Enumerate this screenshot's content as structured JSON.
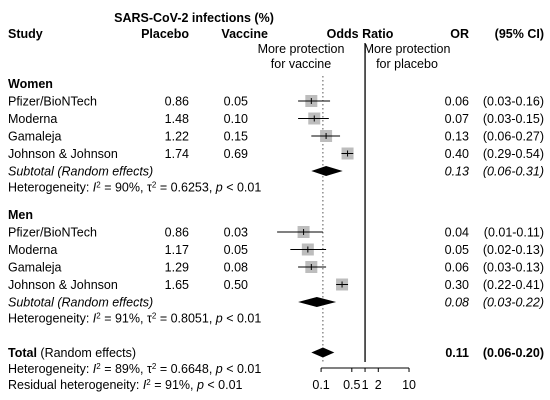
{
  "chart_data": {
    "type": "forest",
    "header": {
      "top": "SARS-CoV-2 infections (%)",
      "study": "Study",
      "placebo": "Placebo",
      "vaccine": "Vaccine",
      "odds_ratio": "Odds Ratio",
      "or": "OR",
      "ci": "(95% CI)",
      "left_note_line1": "More protection",
      "left_note_line2": "for vaccine",
      "right_note_line1": "More protection",
      "right_note_line2": "for placebo"
    },
    "x_axis": {
      "scale": "log",
      "range": [
        0.0085,
        16
      ],
      "ticks": [
        {
          "value": 0.1,
          "label": "0.1"
        },
        {
          "value": 0.5,
          "label": "0.5"
        },
        {
          "value": 1,
          "label": "1"
        },
        {
          "value": 2,
          "label": "2"
        },
        {
          "value": 10,
          "label": "10"
        }
      ],
      "reference_line": 1,
      "dotted_line": 0.11
    },
    "groups": [
      {
        "name": "Women",
        "studies": [
          {
            "name": "Pfizer/BioNTech",
            "placebo": "0.86",
            "vaccine": "0.05",
            "or": 0.06,
            "lo": 0.03,
            "hi": 0.16,
            "or_label": "0.06",
            "ci_label": "(0.03-0.16)"
          },
          {
            "name": "Moderna",
            "placebo": "1.48",
            "vaccine": "0.10",
            "or": 0.07,
            "lo": 0.03,
            "hi": 0.15,
            "or_label": "0.07",
            "ci_label": "(0.03-0.15)"
          },
          {
            "name": "Gamaleja",
            "placebo": "1.22",
            "vaccine": "0.15",
            "or": 0.13,
            "lo": 0.06,
            "hi": 0.27,
            "or_label": "0.13",
            "ci_label": "(0.06-0.27)"
          },
          {
            "name": "Johnson & Johnson",
            "placebo": "1.74",
            "vaccine": "0.69",
            "or": 0.4,
            "lo": 0.29,
            "hi": 0.54,
            "or_label": "0.40",
            "ci_label": "(0.29-0.54)"
          }
        ],
        "subtotal": {
          "label": "Subtotal (Random effects)",
          "or": 0.13,
          "lo": 0.06,
          "hi": 0.31,
          "or_label": "0.13",
          "ci_label": "(0.06-0.31)"
        },
        "heterogeneity": {
          "prefix": "Heterogeneity: ",
          "i2_value": " = 90%, ",
          "tau2_value": " = 0.6253, ",
          "p_value": " < 0.01"
        }
      },
      {
        "name": "Men",
        "studies": [
          {
            "name": "Pfizer/BioNTech",
            "placebo": "0.86",
            "vaccine": "0.03",
            "or": 0.04,
            "lo": 0.01,
            "hi": 0.11,
            "or_label": "0.04",
            "ci_label": "(0.01-0.11)"
          },
          {
            "name": "Moderna",
            "placebo": "1.17",
            "vaccine": "0.05",
            "or": 0.05,
            "lo": 0.02,
            "hi": 0.13,
            "or_label": "0.05",
            "ci_label": "(0.02-0.13)"
          },
          {
            "name": "Gamaleja",
            "placebo": "1.29",
            "vaccine": "0.08",
            "or": 0.06,
            "lo": 0.03,
            "hi": 0.13,
            "or_label": "0.06",
            "ci_label": "(0.03-0.13)"
          },
          {
            "name": "Johnson & Johnson",
            "placebo": "1.65",
            "vaccine": "0.50",
            "or": 0.3,
            "lo": 0.22,
            "hi": 0.41,
            "or_label": "0.30",
            "ci_label": "(0.22-0.41)"
          }
        ],
        "subtotal": {
          "label": "Subtotal (Random effects)",
          "or": 0.08,
          "lo": 0.03,
          "hi": 0.22,
          "or_label": "0.08",
          "ci_label": "(0.03-0.22)"
        },
        "heterogeneity": {
          "prefix": "Heterogeneity: ",
          "i2_value": " = 91%, ",
          "tau2_value": " = 0.8051, ",
          "p_value": " < 0.01"
        }
      }
    ],
    "total": {
      "label_bold": "Total",
      "label_rest": " (Random effects)",
      "or": 0.11,
      "lo": 0.06,
      "hi": 0.2,
      "or_label": "0.11",
      "ci_label": "(0.06-0.20)",
      "heterogeneity": {
        "prefix": "Heterogeneity: ",
        "i2_value": " = 89%, ",
        "tau2_value": " = 0.6648, ",
        "p_value": " < 0.01"
      },
      "residual": {
        "prefix": "Residual heterogeneity: ",
        "i2_value": " = 91%, ",
        "p_value": " < 0.01"
      }
    },
    "colors": {
      "box": "#bdbdbd",
      "diamond": "#000000",
      "heterogeneity_text": "#aaaaaa",
      "lines": "#000000"
    }
  }
}
